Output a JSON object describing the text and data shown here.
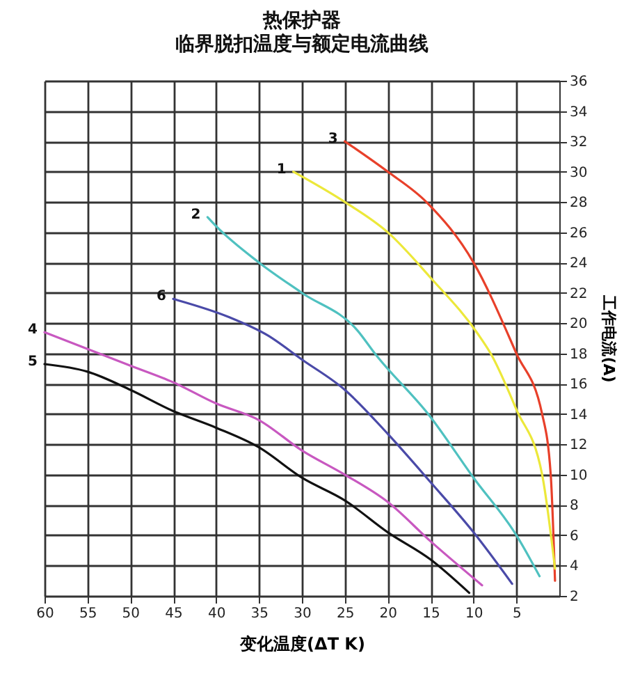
{
  "chart_data": {
    "type": "line",
    "title": "热保护器",
    "subtitle": "临界脱扣温度与额定电流曲线",
    "xlabel": "变化温度(ΔT K)",
    "ylabel": "工作电流(A)",
    "xlim": [
      60,
      0
    ],
    "xticks": [
      60,
      55,
      50,
      45,
      40,
      35,
      30,
      25,
      20,
      15,
      10,
      5
    ],
    "ylim": [
      2,
      36
    ],
    "yticks": [
      2,
      4,
      6,
      8,
      10,
      12,
      14,
      16,
      18,
      20,
      22,
      24,
      26,
      28,
      30,
      32,
      34,
      36
    ],
    "grid": true,
    "legend": false,
    "marker": "none",
    "line_style": "solid",
    "series": [
      {
        "name": "3",
        "color": "#e8402a",
        "x": [
          25,
          20,
          15.5,
          10,
          5,
          2,
          1,
          0.5
        ],
        "values": [
          32,
          30,
          28,
          24,
          18,
          14,
          10,
          3
        ]
      },
      {
        "name": "1",
        "color": "#ece83a",
        "x": [
          31,
          25,
          20,
          15,
          9.5,
          8,
          5,
          2,
          0.5
        ],
        "values": [
          30,
          28,
          26,
          23,
          19.3,
          18,
          14.3,
          10,
          3.8
        ]
      },
      {
        "name": "2",
        "color": "#4fc1c0",
        "x": [
          41,
          40,
          35,
          30,
          23.5,
          21.5,
          15,
          10,
          5,
          2.3
        ],
        "values": [
          27,
          26.4,
          24,
          22,
          19.5,
          18,
          13.8,
          9.8,
          6,
          3.3
        ]
      },
      {
        "name": "6",
        "color": "#4a4aa8",
        "x": [
          45,
          38.5,
          34,
          30,
          25,
          20,
          15,
          10,
          5.5
        ],
        "values": [
          21.6,
          20.4,
          19.2,
          17.6,
          15.6,
          12.7,
          9.5,
          6.2,
          2.8
        ]
      },
      {
        "name": "4",
        "color": "#c858c0",
        "x": [
          60,
          55,
          50,
          45,
          40,
          35,
          30,
          25,
          20,
          15,
          9
        ],
        "values": [
          19.4,
          18.3,
          17.2,
          16.1,
          14.7,
          13.6,
          11.6,
          10,
          8.2,
          5.6,
          2.7
        ]
      },
      {
        "name": "5",
        "color": "#111111",
        "x": [
          60,
          55,
          50,
          45,
          40,
          35,
          30,
          25,
          20,
          15,
          10.5
        ],
        "values": [
          17.3,
          16.8,
          15.6,
          14.2,
          13.1,
          11.8,
          9.8,
          8.3,
          6.2,
          4.4,
          2.2
        ]
      }
    ]
  }
}
